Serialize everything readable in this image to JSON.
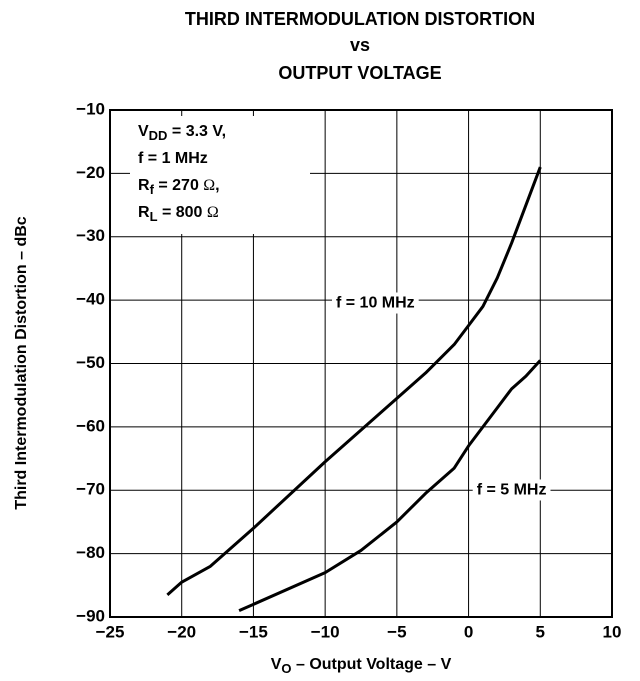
{
  "chart_data": {
    "type": "line",
    "title": [
      "THIRD INTERMODULATION DISTORTION",
      "vs",
      "OUTPUT VOLTAGE"
    ],
    "x_label": {
      "main": "V",
      "sub": "O",
      "rest": " – Output Voltage – V"
    },
    "y_label": "Third Intermodulation Distortion – dBc",
    "annotation": [
      {
        "main": "V",
        "sub": "DD",
        "rest": " = 3.3 V,"
      },
      {
        "main": "f = 1 MHz",
        "sub": "",
        "rest": ""
      },
      {
        "main": "R",
        "sub": "f",
        "rest": " = 270 Ω,"
      },
      {
        "main": "R",
        "sub": "L",
        "rest": " = 800 Ω"
      }
    ],
    "xlim": [
      -25,
      10
    ],
    "ylim": [
      -90,
      -10
    ],
    "xticks": [
      {
        "value": -25,
        "label": "−25"
      },
      {
        "value": -20,
        "label": "−20"
      },
      {
        "value": -15,
        "label": "−15"
      },
      {
        "value": -10,
        "label": "−10"
      },
      {
        "value": -5,
        "label": "−5"
      },
      0,
      5,
      10
    ],
    "yticks": [
      {
        "value": -90,
        "label": "−90"
      },
      {
        "value": -80,
        "label": "−80"
      },
      {
        "value": -70,
        "label": "−70"
      },
      {
        "value": -60,
        "label": "−60"
      },
      {
        "value": -50,
        "label": "−50"
      },
      {
        "value": -40,
        "label": "−40"
      },
      {
        "value": -30,
        "label": "−30"
      },
      {
        "value": -20,
        "label": "−20"
      },
      {
        "value": -10,
        "label": "−10"
      }
    ],
    "grid": true,
    "series": [
      {
        "name": "f = 10 MHz",
        "color": "#000000",
        "x": [
          -21,
          -20,
          -18,
          -15,
          -10,
          -5,
          -3,
          -1,
          0,
          1,
          2,
          3,
          4,
          5
        ],
        "values": [
          -86.5,
          -84.5,
          -82,
          -76,
          -65.5,
          -55.5,
          -51.5,
          -47,
          -44,
          -41,
          -36.5,
          -31,
          -25,
          -19
        ]
      },
      {
        "name": "f = 5 MHz",
        "color": "#000000",
        "x": [
          -16,
          -15,
          -10,
          -7.5,
          -5,
          -3,
          -1,
          0,
          1,
          2,
          3,
          4,
          5
        ],
        "values": [
          -89,
          -88,
          -83,
          -79.5,
          -75,
          -70.5,
          -66.5,
          -63,
          -60,
          -57,
          -54,
          -52,
          -49.5
        ]
      }
    ]
  }
}
